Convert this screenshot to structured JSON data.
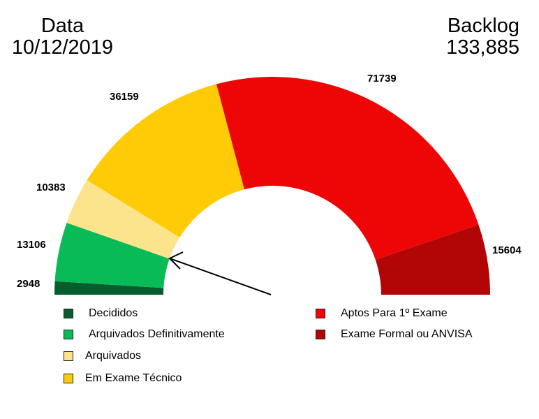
{
  "header": {
    "left_title": "Data",
    "left_value": "10/12/2019",
    "right_title": "Backlog",
    "right_value": "133,885"
  },
  "chart_data": {
    "type": "pie",
    "variant": "half-donut gauge",
    "title": "",
    "total": 149939,
    "segments": [
      {
        "label": "Decididos",
        "value": 2948,
        "color": "#065e2e"
      },
      {
        "label": "Arquivados Definitivamente",
        "value": 13106,
        "color": "#08bb56"
      },
      {
        "label": "Arquivados",
        "value": 10383,
        "color": "#fce48d"
      },
      {
        "label": "Em Exame Técnico",
        "value": 36159,
        "color": "#fecb06"
      },
      {
        "label": "Aptos Para 1º Exame",
        "value": 71739,
        "color": "#ee0606"
      },
      {
        "label": "Exame Formal ou ANVISA",
        "value": 15604,
        "color": "#b20606"
      }
    ],
    "annotations": [
      {
        "type": "arrow",
        "from": [
          388,
          422
        ],
        "to": [
          242,
          370
        ],
        "meaning": "points to boundary between Arquivados Definitivamente and Arquivados (backlog start)"
      }
    ],
    "legend_position": "bottom"
  },
  "labels": {
    "decididos": "2948",
    "arq_def": "13106",
    "arquivados": "10383",
    "em_exame": "36159",
    "aptos": "71739",
    "formal": "15604"
  },
  "legend": [
    {
      "label": "Decididos",
      "color": "#065e2e"
    },
    {
      "label": "Arquivados Definitivamente",
      "color": "#08bb56"
    },
    {
      "label": "Arquivados",
      "color": "#fce48d"
    },
    {
      "label": "Em Exame Técnico",
      "color": "#fecb06"
    },
    {
      "label": "Aptos Para 1º Exame",
      "color": "#ee0606"
    },
    {
      "label": "Exame Formal ou ANVISA",
      "color": "#b20606"
    }
  ]
}
